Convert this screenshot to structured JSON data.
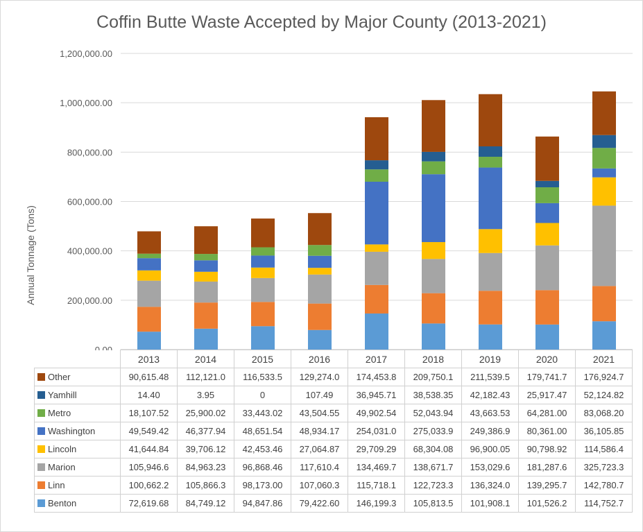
{
  "chart_data": {
    "type": "bar",
    "stacked": true,
    "title": "Coffin Butte Waste Accepted by Major County (2013-2021)",
    "xlabel": "",
    "ylabel": "Annual Tonnage (Tons)",
    "ylim": [
      0,
      1200000
    ],
    "yticks": [
      0,
      200000,
      400000,
      600000,
      800000,
      1000000,
      1200000
    ],
    "ytick_labels": [
      "0.00",
      "200,000.00",
      "400,000.00",
      "600,000.00",
      "800,000.00",
      "1,000,000.00",
      "1,200,000.00"
    ],
    "grid": true,
    "legend": "data-table",
    "categories": [
      "2013",
      "2014",
      "2015",
      "2016",
      "2017",
      "2018",
      "2019",
      "2020",
      "2021"
    ],
    "series": [
      {
        "name": "Benton",
        "color": "#5b9bd5",
        "values": [
          72619.68,
          84749.12,
          94847.86,
          79422.6,
          146199.3,
          105813.5,
          101908.1,
          101526.2,
          114752.7
        ],
        "labels": [
          "72,619.68",
          "84,749.12",
          "94,847.86",
          "79,422.60",
          "146,199.3",
          "105,813.5",
          "101,908.1",
          "101,526.2",
          "114,752.7"
        ]
      },
      {
        "name": "Linn",
        "color": "#ed7d31",
        "values": [
          100662.2,
          105866.3,
          98173.0,
          107060.3,
          115718.1,
          122723.3,
          136324.0,
          139295.7,
          142780.7
        ],
        "labels": [
          "100,662.2",
          "105,866.3",
          "98,173.00",
          "107,060.3",
          "115,718.1",
          "122,723.3",
          "136,324.0",
          "139,295.7",
          "142,780.7"
        ]
      },
      {
        "name": "Marion",
        "color": "#a5a5a5",
        "values": [
          105946.6,
          84963.23,
          96868.46,
          117610.4,
          134469.7,
          138671.7,
          153029.6,
          181287.6,
          325723.3
        ],
        "labels": [
          "105,946.6",
          "84,963.23",
          "96,868.46",
          "117,610.4",
          "134,469.7",
          "138,671.7",
          "153,029.6",
          "181,287.6",
          "325,723.3"
        ]
      },
      {
        "name": "Lincoln",
        "color": "#ffc000",
        "values": [
          41644.84,
          39706.12,
          42453.46,
          27064.87,
          29709.29,
          68304.08,
          96900.05,
          90798.92,
          114586.4
        ],
        "labels": [
          "41,644.84",
          "39,706.12",
          "42,453.46",
          "27,064.87",
          "29,709.29",
          "68,304.08",
          "96,900.05",
          "90,798.92",
          "114,586.4"
        ]
      },
      {
        "name": "Washington",
        "color": "#4472c4",
        "values": [
          49549.42,
          46377.94,
          48651.54,
          48934.17,
          254031.0,
          275033.9,
          249386.9,
          80361.0,
          36105.85
        ],
        "labels": [
          "49,549.42",
          "46,377.94",
          "48,651.54",
          "48,934.17",
          "254,031.0",
          "275,033.9",
          "249,386.9",
          "80,361.00",
          "36,105.85"
        ]
      },
      {
        "name": "Metro",
        "color": "#70ad47",
        "values": [
          18107.52,
          25900.02,
          33443.02,
          43504.55,
          49902.54,
          52043.94,
          43663.53,
          64281.0,
          83068.2
        ],
        "labels": [
          "18,107.52",
          "25,900.02",
          "33,443.02",
          "43,504.55",
          "49,902.54",
          "52,043.94",
          "43,663.53",
          "64,281.00",
          "83,068.20"
        ]
      },
      {
        "name": "Yamhill",
        "color": "#255e91",
        "values": [
          14.4,
          3.95,
          0,
          107.49,
          36945.71,
          38538.35,
          42182.43,
          25917.47,
          52124.82
        ],
        "labels": [
          "14.40",
          "3.95",
          "0",
          "107.49",
          "36,945.71",
          "38,538.35",
          "42,182.43",
          "25,917.47",
          "52,124.82"
        ]
      },
      {
        "name": "Other",
        "color": "#9e480e",
        "values": [
          90615.48,
          112121.0,
          116533.5,
          129274.0,
          174453.8,
          209750.1,
          211539.5,
          179741.7,
          176924.7
        ],
        "labels": [
          "90,615.48",
          "112,121.0",
          "116,533.5",
          "129,274.0",
          "174,453.8",
          "209,750.1",
          "211,539.5",
          "179,741.7",
          "176,924.7"
        ]
      }
    ]
  }
}
